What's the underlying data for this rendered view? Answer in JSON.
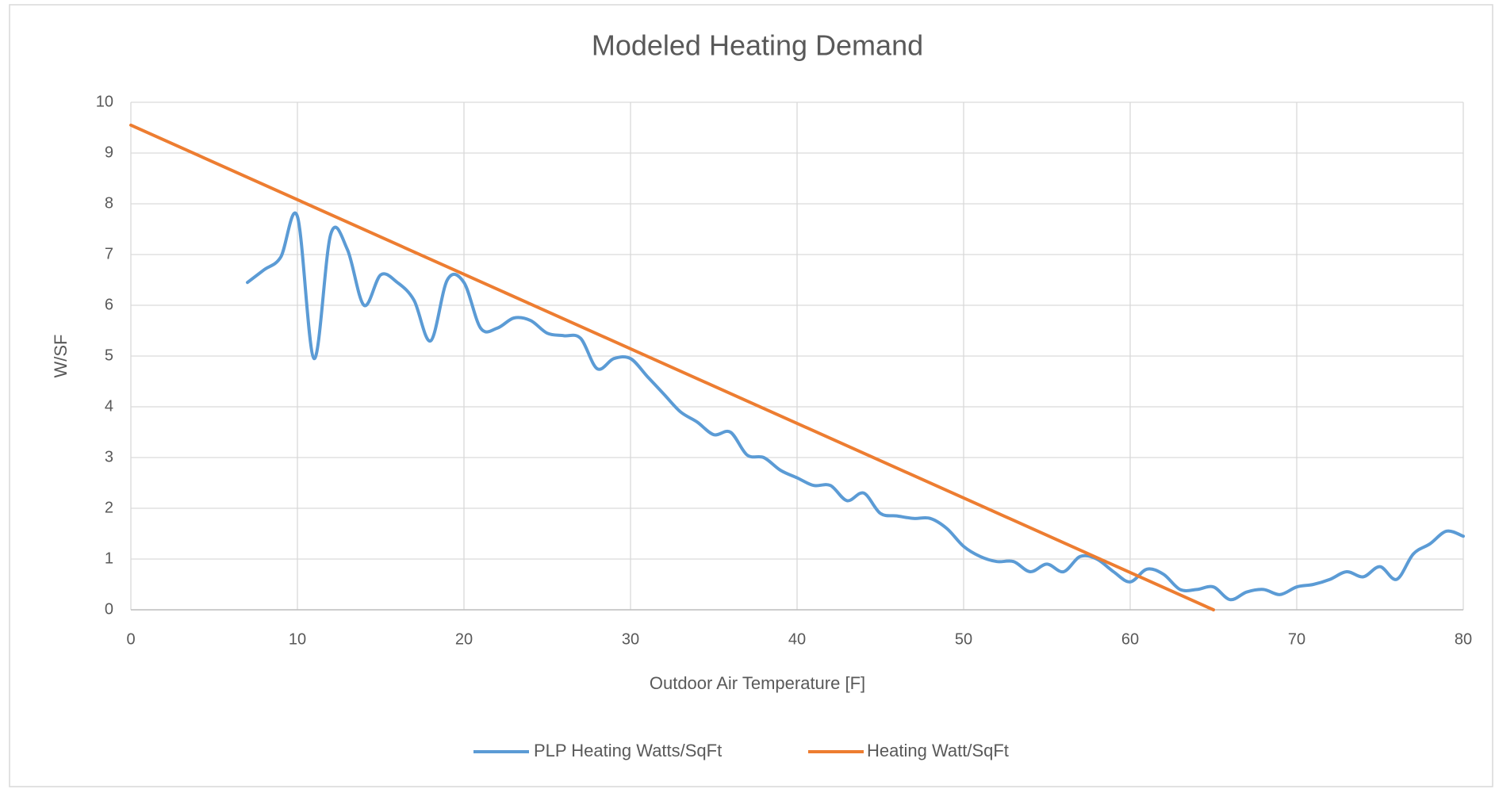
{
  "chart_data": {
    "type": "line",
    "title": "Modeled Heating Demand",
    "x_label": "Outdoor Air Temperature [F]",
    "y_label": "W/SF",
    "xlim": [
      0,
      80
    ],
    "ylim": [
      0,
      10
    ],
    "xticks": [
      0,
      10,
      20,
      30,
      40,
      50,
      60,
      70,
      80
    ],
    "yticks": [
      0,
      1,
      2,
      3,
      4,
      5,
      6,
      7,
      8,
      9,
      10
    ],
    "grid": true,
    "legend": "bottom",
    "smooth": true,
    "series": [
      {
        "name": "PLP Heating Watts/SqFt",
        "color": "#5b9bd5",
        "x": [
          7,
          8,
          9,
          10,
          11,
          12,
          13,
          14,
          15,
          16,
          17,
          18,
          19,
          20,
          21,
          22,
          23,
          24,
          25,
          26,
          27,
          28,
          29,
          30,
          31,
          32,
          33,
          34,
          35,
          36,
          37,
          38,
          39,
          40,
          41,
          42,
          43,
          44,
          45,
          46,
          47,
          48,
          49,
          50,
          51,
          52,
          53,
          54,
          55,
          56,
          57,
          58,
          59,
          60,
          61,
          62,
          63,
          64,
          65,
          66,
          67,
          68,
          69,
          70,
          71,
          72,
          73,
          74,
          75,
          76,
          77,
          78,
          79,
          80
        ],
        "values": [
          6.45,
          6.7,
          6.95,
          7.75,
          4.95,
          7.4,
          7.1,
          6.0,
          6.6,
          6.45,
          6.1,
          5.3,
          6.5,
          6.45,
          5.55,
          5.55,
          5.75,
          5.7,
          5.45,
          5.4,
          5.35,
          4.75,
          4.95,
          4.95,
          4.6,
          4.25,
          3.9,
          3.7,
          3.45,
          3.5,
          3.05,
          3.0,
          2.75,
          2.6,
          2.45,
          2.45,
          2.15,
          2.3,
          1.9,
          1.85,
          1.8,
          1.8,
          1.6,
          1.25,
          1.05,
          0.95,
          0.95,
          0.75,
          0.9,
          0.75,
          1.05,
          1.0,
          0.75,
          0.55,
          0.8,
          0.7,
          0.4,
          0.4,
          0.45,
          0.2,
          0.35,
          0.4,
          0.3,
          0.45,
          0.5,
          0.6,
          0.75,
          0.65,
          0.85,
          0.6,
          1.1,
          1.3,
          1.55,
          1.45
        ]
      },
      {
        "name": "Heating Watt/SqFt",
        "color": "#ed7d31",
        "x": [
          0,
          65
        ],
        "values": [
          9.55,
          0
        ]
      }
    ]
  }
}
